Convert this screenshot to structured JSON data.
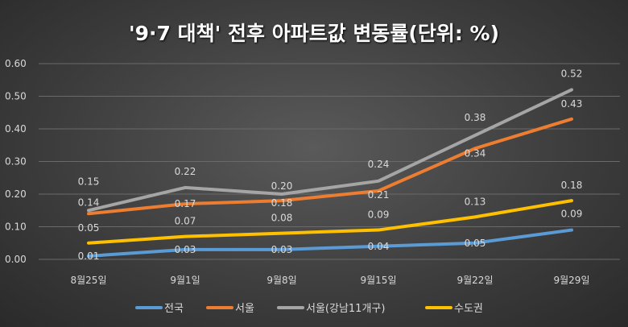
{
  "chart_data": {
    "type": "line",
    "title": "'9·7 대책' 전후 아파트값 변동률(단위: %)",
    "categories": [
      "8월25일",
      "9월1일",
      "9월8일",
      "9월15일",
      "9월22일",
      "9월29일"
    ],
    "ylim": [
      0,
      0.6
    ],
    "yticks": [
      "0.00",
      "0.10",
      "0.20",
      "0.30",
      "0.40",
      "0.50",
      "0.60"
    ],
    "grid": true,
    "legend_position": "bottom",
    "series": [
      {
        "name": "전국",
        "color": "#5b9bd5",
        "values": [
          0.01,
          0.03,
          0.03,
          0.04,
          0.05,
          0.09
        ]
      },
      {
        "name": "서울",
        "color": "#ed7d31",
        "values": [
          0.14,
          0.17,
          0.18,
          0.21,
          0.34,
          0.43
        ]
      },
      {
        "name": "서울(강남11개구)",
        "color": "#a5a5a5",
        "values": [
          0.15,
          0.22,
          0.2,
          0.24,
          0.38,
          0.52
        ]
      },
      {
        "name": "수도권",
        "color": "#ffc000",
        "values": [
          0.05,
          0.07,
          0.08,
          0.09,
          0.13,
          0.18
        ]
      }
    ]
  }
}
